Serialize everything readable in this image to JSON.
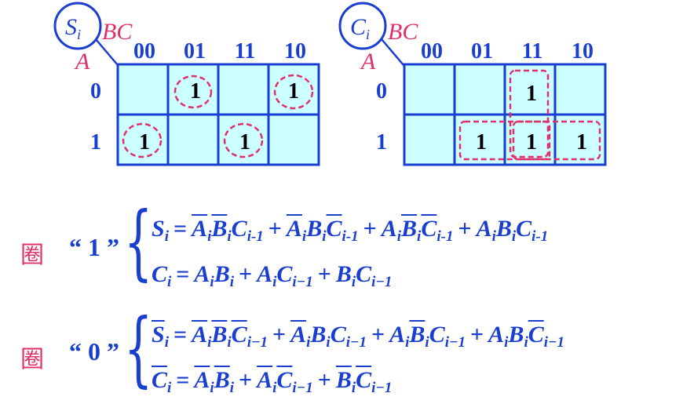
{
  "kmaps": [
    {
      "id": "si",
      "output": "S",
      "output_sub": "i",
      "row_var": "A",
      "col_var": "BC",
      "col_labels": [
        "00",
        "01",
        "11",
        "10"
      ],
      "row_labels": [
        "0",
        "1"
      ],
      "cells": [
        [
          "",
          "1",
          "",
          "1"
        ],
        [
          "1",
          "",
          "1",
          ""
        ]
      ]
    },
    {
      "id": "ci",
      "output": "C",
      "output_sub": "i",
      "row_var": "A",
      "col_var": "BC",
      "col_labels": [
        "00",
        "01",
        "11",
        "10"
      ],
      "row_labels": [
        "0",
        "1"
      ],
      "cells": [
        [
          "",
          "",
          "1",
          ""
        ],
        [
          "",
          "1",
          "1",
          "1"
        ]
      ]
    }
  ],
  "groups": [
    {
      "label": "圈",
      "quote": "“ 1 ”",
      "equations": [
        {
          "lhs": [
            {
              "t": "S",
              "s": "i"
            }
          ],
          "terms": [
            [
              {
                "t": "A",
                "s": "i",
                "bar": true
              },
              {
                "t": "B",
                "s": "i",
                "bar": true
              },
              {
                "t": "C",
                "s": "i-1"
              }
            ],
            [
              {
                "t": "A",
                "s": "i",
                "bar": true
              },
              {
                "t": "B",
                "s": "i"
              },
              {
                "t": "C",
                "s": "i-1",
                "bar": true
              }
            ],
            [
              {
                "t": "A",
                "s": "i"
              },
              {
                "t": "B",
                "s": "i",
                "bar": true
              },
              {
                "t": "C",
                "s": "i-1",
                "bar": true
              }
            ],
            [
              {
                "t": "A",
                "s": "i"
              },
              {
                "t": "B",
                "s": "i"
              },
              {
                "t": "C",
                "s": "i-1"
              }
            ]
          ]
        },
        {
          "lhs": [
            {
              "t": "C",
              "s": "i"
            }
          ],
          "terms": [
            [
              {
                "t": "A",
                "s": "i"
              },
              {
                "t": "B",
                "s": "i"
              }
            ],
            [
              {
                "t": "A",
                "s": "i"
              },
              {
                "t": "C",
                "s": "i−1"
              }
            ],
            [
              {
                "t": "B",
                "s": "i"
              },
              {
                "t": "C",
                "s": "i−1"
              }
            ]
          ]
        }
      ]
    },
    {
      "label": "圈",
      "quote": "“ 0 ”",
      "equations": [
        {
          "lhs": [
            {
              "t": "S",
              "s": "i",
              "bar": true
            }
          ],
          "terms": [
            [
              {
                "t": "A",
                "s": "i",
                "bar": true
              },
              {
                "t": "B",
                "s": "i",
                "bar": true
              },
              {
                "t": "C",
                "s": "i−1",
                "bar": true
              }
            ],
            [
              {
                "t": "A",
                "s": "i",
                "bar": true
              },
              {
                "t": "B",
                "s": "i"
              },
              {
                "t": "C",
                "s": "i−1"
              }
            ],
            [
              {
                "t": "A",
                "s": "i"
              },
              {
                "t": "B",
                "s": "i",
                "bar": true
              },
              {
                "t": "C",
                "s": "i−1"
              }
            ],
            [
              {
                "t": "A",
                "s": "i"
              },
              {
                "t": "B",
                "s": "i"
              },
              {
                "t": "C",
                "s": "i−1",
                "bar": true
              }
            ]
          ]
        },
        {
          "lhs": [
            {
              "t": "C",
              "s": "i",
              "bar": true
            }
          ],
          "terms": [
            [
              {
                "t": "A",
                "s": "i",
                "bar": true
              },
              {
                "t": "B",
                "s": "i",
                "bar": true
              }
            ],
            [
              {
                "t": "A",
                "s": "i",
                "bar": true
              },
              {
                "t": "C",
                "s": "i−1",
                "bar": true
              }
            ],
            [
              {
                "t": "B",
                "s": "i",
                "bar": true
              },
              {
                "t": "C",
                "s": "i−1",
                "bar": true
              }
            ]
          ]
        }
      ]
    }
  ],
  "symbols": {
    "eq": "=",
    "plus": "+",
    "brace": "{"
  },
  "colors": {
    "blue": "#1a3fd0",
    "red": "#e0306a",
    "cell": "#ccffff"
  }
}
